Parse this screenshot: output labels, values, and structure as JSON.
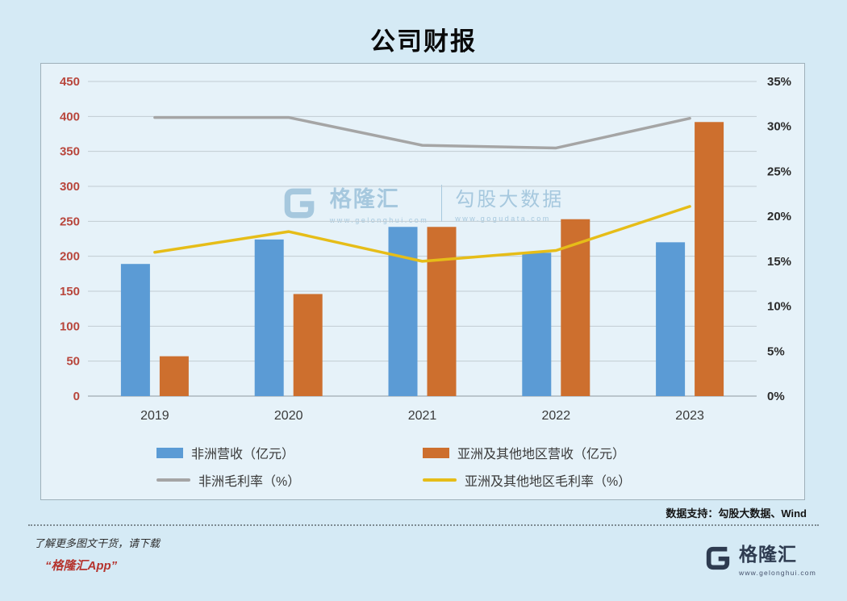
{
  "page_title": "公司财报",
  "chart_data": {
    "type": "combo-bar-line",
    "categories": [
      "2019",
      "2020",
      "2021",
      "2022",
      "2023"
    ],
    "series": [
      {
        "name": "非洲营收（亿元）",
        "type": "bar",
        "axis": "left",
        "color": "#5b9bd5",
        "values": [
          189,
          224,
          242,
          205,
          220
        ]
      },
      {
        "name": "亚洲及其他地区营收（亿元）",
        "type": "bar",
        "axis": "left",
        "color": "#cd6f2e",
        "values": [
          57,
          146,
          242,
          253,
          392
        ]
      },
      {
        "name": "非洲毛利率（%）",
        "type": "line",
        "axis": "right",
        "color": "#a5a5a5",
        "values": [
          31,
          31,
          27.9,
          27.6,
          30.9
        ]
      },
      {
        "name": "亚洲及其他地区毛利率（%）",
        "type": "line",
        "axis": "right",
        "color": "#e6bd18",
        "values": [
          16,
          18.3,
          15,
          16.2,
          21.1
        ]
      }
    ],
    "left_axis": {
      "min": 0,
      "max": 450,
      "step": 50,
      "label_color": "#b8463c",
      "labels": [
        "0",
        "50",
        "100",
        "150",
        "200",
        "250",
        "300",
        "350",
        "400",
        "450"
      ]
    },
    "right_axis": {
      "min": 0,
      "max": 35,
      "step": 5,
      "label_color": "#2b2b2b",
      "labels": [
        "0%",
        "5%",
        "10%",
        "15%",
        "20%",
        "25%",
        "30%",
        "35%"
      ]
    },
    "grid": true,
    "legend_position": "bottom"
  },
  "watermark": {
    "brand": "格隆汇",
    "brand_url": "www.gelonghui.com",
    "partner": "勾股大数据",
    "partner_url": "www.gogudata.com"
  },
  "source_note": "数据支持：勾股大数据、Wind",
  "footer": {
    "promo_line": "了解更多图文干货，请下载",
    "app_name": "“格隆汇App”",
    "logo_text": "格隆汇",
    "logo_url": "www.gelonghui.com"
  },
  "theme": {
    "page_bg": "#d5eaf5",
    "chart_bg": "#e6f2f9",
    "grid_color": "#c2ccd2",
    "axis_color": "#8d98a0",
    "x_label_color": "#3a3a3a"
  }
}
